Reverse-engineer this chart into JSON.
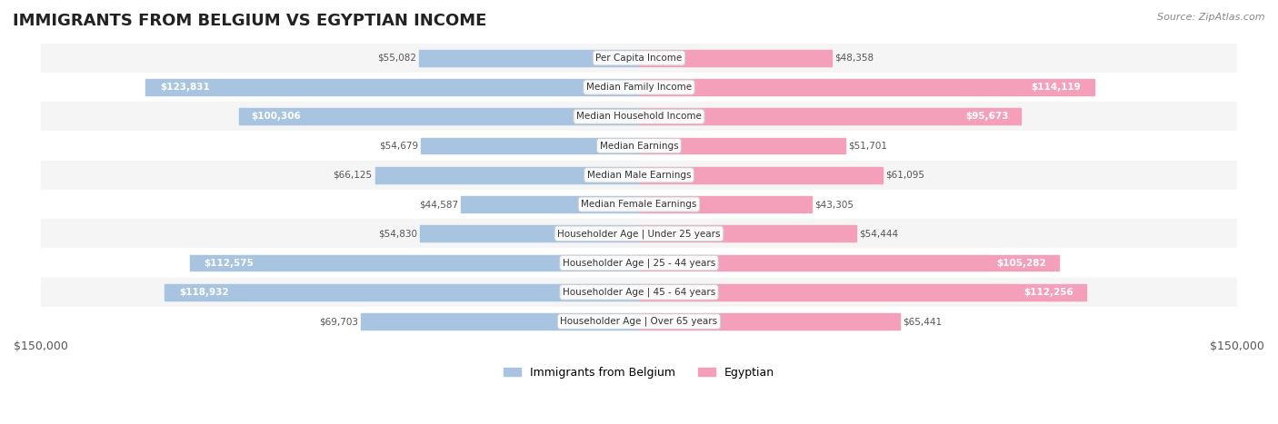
{
  "title": "IMMIGRANTS FROM BELGIUM VS EGYPTIAN INCOME",
  "source": "Source: ZipAtlas.com",
  "categories": [
    "Per Capita Income",
    "Median Family Income",
    "Median Household Income",
    "Median Earnings",
    "Median Male Earnings",
    "Median Female Earnings",
    "Householder Age | Under 25 years",
    "Householder Age | 25 - 44 years",
    "Householder Age | 45 - 64 years",
    "Householder Age | Over 65 years"
  ],
  "belgium_values": [
    55082,
    123831,
    100306,
    54679,
    66125,
    44587,
    54830,
    112575,
    118932,
    69703
  ],
  "egyptian_values": [
    48358,
    114119,
    95673,
    51701,
    61095,
    43305,
    54444,
    105282,
    112256,
    65441
  ],
  "max_val": 150000,
  "belgium_color": "#a8c4e0",
  "egyptian_color": "#f4a0bb",
  "belgium_label_color_threshold": 80000,
  "egypt_label_color_threshold": 80000,
  "bar_height": 0.55,
  "row_bg_even": "#f5f5f5",
  "row_bg_odd": "#ffffff",
  "center_label_bg": "#ffffff",
  "center_label_border": "#cccccc",
  "legend_belgium_color": "#a8c4e0",
  "legend_egyptian_color": "#f4a0bb"
}
